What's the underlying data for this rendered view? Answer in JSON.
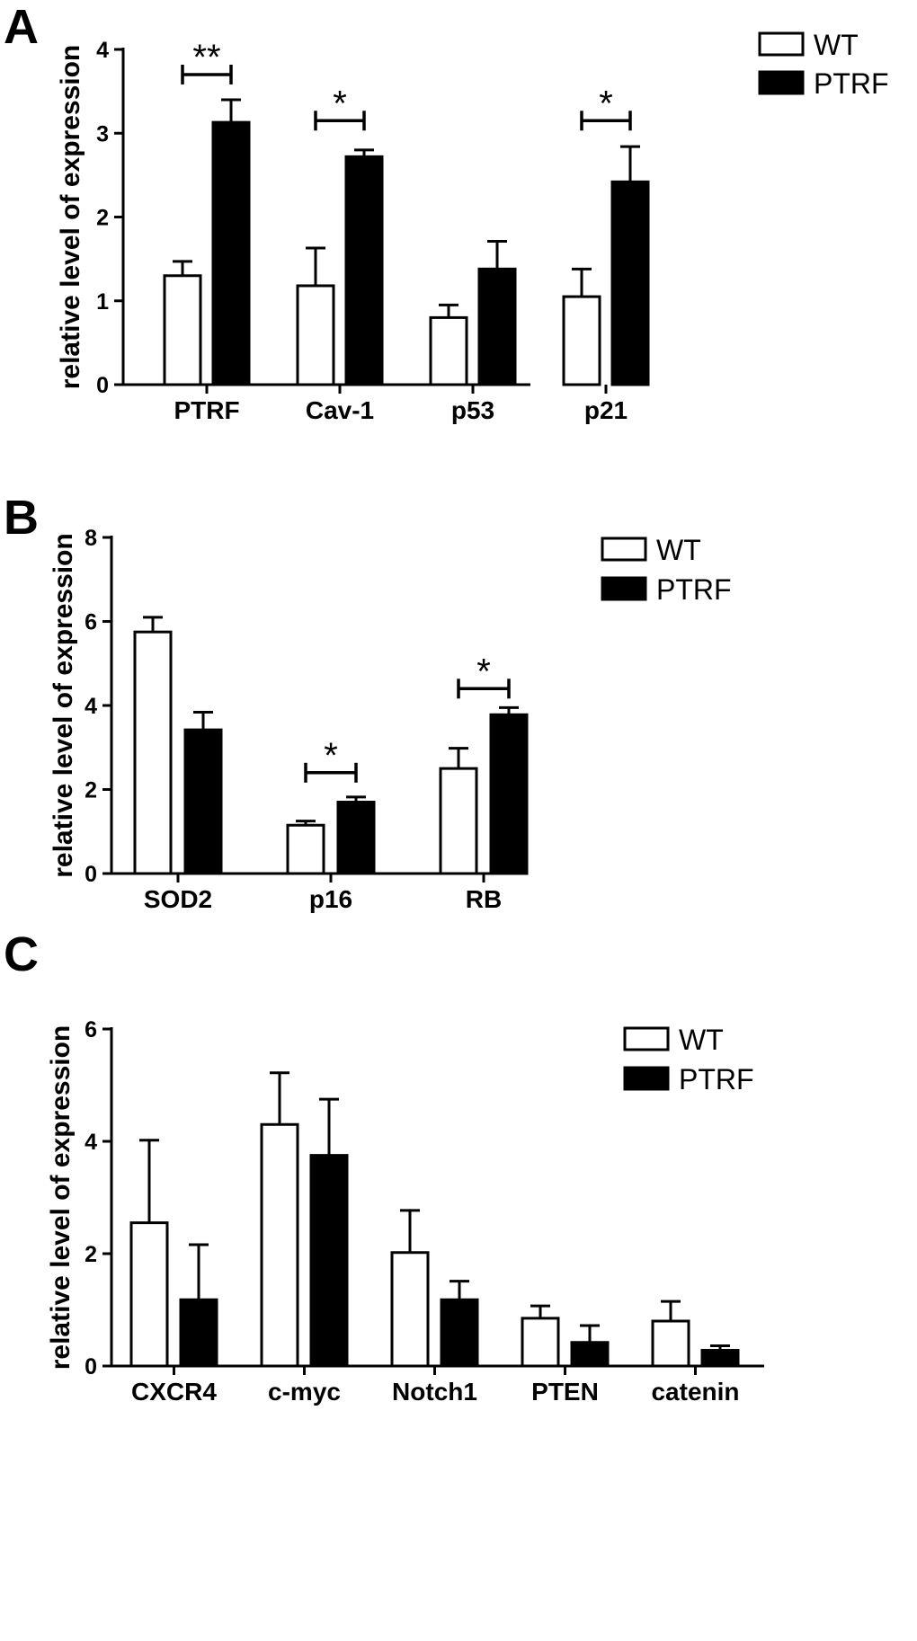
{
  "chart_data": [
    {
      "panel": "A",
      "type": "bar",
      "ylabel": "relative level of expression",
      "xlabel": "",
      "ylim": [
        0,
        4
      ],
      "yticks": [
        0,
        1,
        2,
        3,
        4
      ],
      "categories": [
        "PTRF",
        "Cav-1",
        "p53",
        "p21"
      ],
      "series": [
        {
          "name": "WT",
          "values": [
            1.3,
            1.18,
            0.8,
            1.05
          ],
          "errors": [
            0.17,
            0.45,
            0.15,
            0.33
          ]
        },
        {
          "name": "PTRF",
          "values": [
            3.13,
            2.72,
            1.38,
            2.42
          ],
          "errors": [
            0.27,
            0.08,
            0.33,
            0.42
          ]
        }
      ],
      "significance": [
        {
          "category_index": 0,
          "label": "**",
          "y": 3.7
        },
        {
          "category_index": 1,
          "label": "*",
          "y": 3.15
        },
        {
          "category_index": 3,
          "label": "*",
          "y": 3.15
        }
      ],
      "legend": [
        "WT",
        "PTRF"
      ],
      "legend_position": "top-right"
    },
    {
      "panel": "B",
      "type": "bar",
      "ylabel": "relative level of expression",
      "xlabel": "",
      "ylim": [
        0,
        8
      ],
      "yticks": [
        0,
        2,
        4,
        6,
        8
      ],
      "categories": [
        "SOD2",
        "p16",
        "RB"
      ],
      "series": [
        {
          "name": "WT",
          "values": [
            5.75,
            1.15,
            2.5
          ],
          "errors": [
            0.35,
            0.1,
            0.48
          ]
        },
        {
          "name": "PTRF",
          "values": [
            3.42,
            1.7,
            3.78
          ],
          "errors": [
            0.42,
            0.12,
            0.17
          ]
        }
      ],
      "significance": [
        {
          "category_index": 1,
          "label": "*",
          "y": 2.4
        },
        {
          "category_index": 2,
          "label": "*",
          "y": 4.4
        }
      ],
      "legend": [
        "WT",
        "PTRF"
      ],
      "legend_position": "top-right"
    },
    {
      "panel": "C",
      "type": "bar",
      "ylabel": "relative level of expression",
      "xlabel": "",
      "ylim": [
        0,
        6
      ],
      "yticks": [
        0,
        2,
        4,
        6
      ],
      "categories": [
        "CXCR4",
        "c-myc",
        "Notch1",
        "PTEN",
        "catenin"
      ],
      "series": [
        {
          "name": "WT",
          "values": [
            2.55,
            4.3,
            2.02,
            0.85,
            0.8
          ],
          "errors": [
            1.47,
            0.92,
            0.75,
            0.22,
            0.35
          ]
        },
        {
          "name": "PTRF",
          "values": [
            1.18,
            3.75,
            1.18,
            0.42,
            0.28
          ],
          "errors": [
            0.98,
            1.0,
            0.33,
            0.3,
            0.08
          ]
        }
      ],
      "significance": [],
      "legend": [
        "WT",
        "PTRF"
      ],
      "legend_position": "top-right"
    }
  ]
}
